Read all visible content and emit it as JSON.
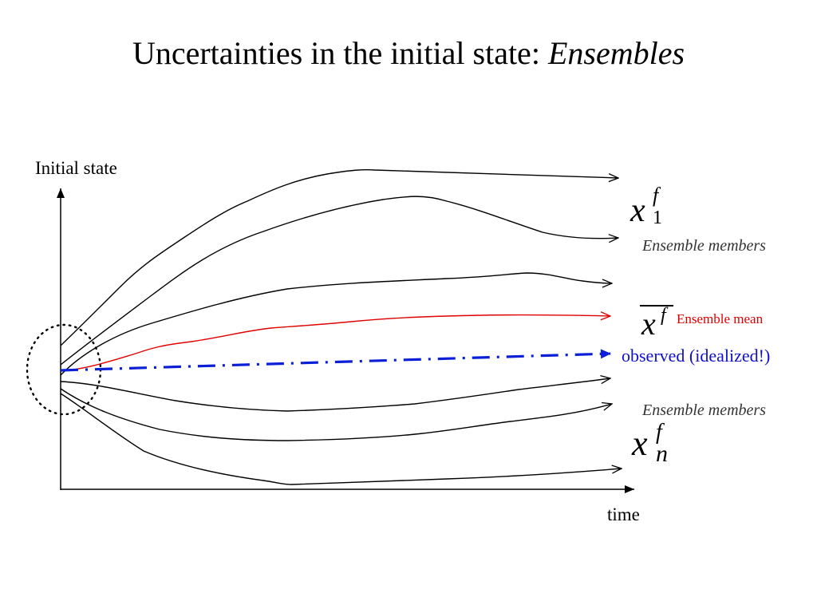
{
  "title": {
    "main": "Uncertainties in the initial state: ",
    "emphasis": "Ensembles"
  },
  "axes": {
    "y_label": "Initial state",
    "x_label": "time"
  },
  "labels": {
    "members_top": "Ensemble members",
    "members_bottom": "Ensemble members",
    "mean": "Ensemble mean",
    "observed": "observed (idealized!)"
  },
  "symbols": {
    "first_member": {
      "base": "x",
      "sup": "f",
      "sub": "1"
    },
    "mean": {
      "base": "x",
      "sup": "f"
    },
    "last_member": {
      "base": "x",
      "sup": "f",
      "sub": "n"
    }
  },
  "colors": {
    "members": "#000000",
    "mean": "#e00000",
    "observed": "#0a1fd6"
  }
}
